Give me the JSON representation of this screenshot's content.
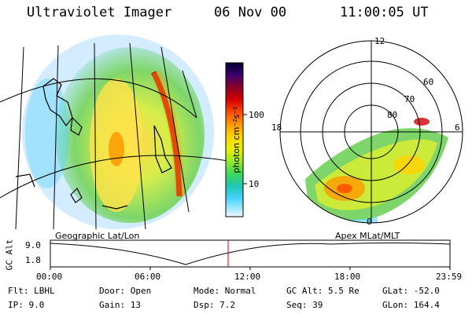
{
  "header": {
    "title": "Ultraviolet Imager",
    "date": "06 Nov 00",
    "time": "11:00:05 UT"
  },
  "colorbar": {
    "label": "photon cm⁻²s⁻¹",
    "ticks": [
      "100",
      "10"
    ],
    "colors": [
      "#000030",
      "#3a006a",
      "#8a0028",
      "#d20000",
      "#ff4a00",
      "#ff9a00",
      "#ffd200",
      "#e8f000",
      "#9ae82a",
      "#3ed85a",
      "#1ec8b0",
      "#46d2ff",
      "#9ae6ff",
      "#d6f2ff",
      "#f2f8ff"
    ]
  },
  "geo_panel": {
    "caption": "Geographic Lat/Lon"
  },
  "polar_panel": {
    "caption": "Apex MLat/MLT",
    "mlt_labels": {
      "top": "12",
      "left": "18",
      "right": "6",
      "bottom": "0"
    },
    "lat_labels": [
      "60",
      "70",
      "80"
    ]
  },
  "altitude_plot": {
    "ylabel": "GC Alt",
    "yticks": [
      "9.0",
      "1.8"
    ],
    "xticks": [
      "00:00",
      "06:00",
      "12:00",
      "18:00",
      "23:59"
    ]
  },
  "status": {
    "filter": {
      "label": "Flt:",
      "value": "LBHL"
    },
    "ip": {
      "label": "IP:",
      "value": "9.0"
    },
    "door": {
      "label": "Door:",
      "value": "Open"
    },
    "gain": {
      "label": "Gain:",
      "value": "13"
    },
    "mode": {
      "label": "Mode:",
      "value": "Normal"
    },
    "dsp": {
      "label": "Dsp:",
      "value": "7.2"
    },
    "gc_alt": {
      "label": "GC Alt:",
      "value": "5.5 Re"
    },
    "seq": {
      "label": "Seq:",
      "value": "39"
    },
    "glat": {
      "label": "GLat:",
      "value": "-52.0"
    },
    "glon": {
      "label": "GLon:",
      "value": "164.4"
    }
  }
}
